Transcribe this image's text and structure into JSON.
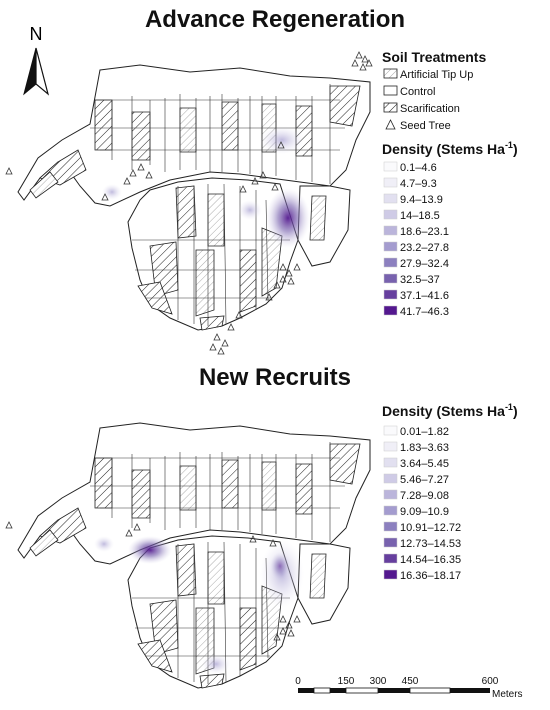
{
  "maps": [
    {
      "title": "Advance Regeneration",
      "legend": {
        "soil_heading": "Soil Treatments",
        "soil_items": [
          "Artificial Tip Up",
          "Control",
          "Scarification",
          "Seed Tree"
        ],
        "density_heading": "Density (Stems Ha",
        "density_superscript": "-1",
        "density_close": ")",
        "classes": [
          "0.1–4.6",
          "4.7–9.3",
          "9.4–13.9",
          "14–18.5",
          "18.6–23.1",
          "23.2–27.8",
          "27.9–32.4",
          "32.5–37",
          "37.1–41.6",
          "41.7–46.3"
        ]
      }
    },
    {
      "title": "New Recruits",
      "legend": {
        "density_heading": "Density (Stems Ha",
        "density_superscript": "-1",
        "density_close": ")",
        "classes": [
          "0.01–1.82",
          "1.83–3.63",
          "3.64–5.45",
          "5.46–7.27",
          "7.28–9.08",
          "9.09–10.9",
          "10.91–12.72",
          "12.73–14.53",
          "14.54–16.35",
          "16.36–18.17"
        ]
      }
    }
  ],
  "north_label": "N",
  "scale_bar": {
    "ticks": [
      "0",
      "150",
      "300",
      "450",
      "600"
    ],
    "unit": "Meters"
  },
  "colors": {
    "ramp": [
      "#fafafc",
      "#f0eff7",
      "#e2e0f0",
      "#cfcbe6",
      "#bbb5db",
      "#a49ccf",
      "#8c80bf",
      "#7862ae",
      "#663f9e",
      "#54188f"
    ],
    "outline": "#222222"
  }
}
